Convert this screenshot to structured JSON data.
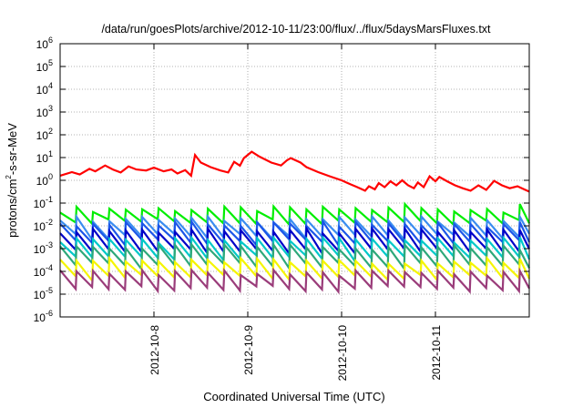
{
  "chart_data": {
    "type": "line",
    "title": "/data/run/goesPlots/archive/2012-10-11/23:00/flux/../flux/5daysMarsFluxes.txt",
    "xlabel": "Coordinated Universal Time (UTC)",
    "ylabel_parts": {
      "pre": "protons/cm",
      "sup": "2",
      "post": "-s-sr-MeV"
    },
    "x_scale": "time",
    "x_range_days": [
      "2012-10-07T00:00",
      "2012-10-12T00:00"
    ],
    "x_ticks": [
      "2012-10-8",
      "2012-10-9",
      "2012-10-10",
      "2012-10-11"
    ],
    "y_scale": "log",
    "ylim": [
      1e-06,
      1000000.0
    ],
    "y_ticks": [
      {
        "base": "10",
        "exp": "-6"
      },
      {
        "base": "10",
        "exp": "-5"
      },
      {
        "base": "10",
        "exp": "-4"
      },
      {
        "base": "10",
        "exp": "-3"
      },
      {
        "base": "10",
        "exp": "-2"
      },
      {
        "base": "10",
        "exp": "-1"
      },
      {
        "base": "10",
        "exp": "0"
      },
      {
        "base": "10",
        "exp": "1"
      },
      {
        "base": "10",
        "exp": "2"
      },
      {
        "base": "10",
        "exp": "3"
      },
      {
        "base": "10",
        "exp": "4"
      },
      {
        "base": "10",
        "exp": "5"
      },
      {
        "base": "10",
        "exp": "6"
      }
    ],
    "grid": true,
    "colors": {
      "red": "#ff0000",
      "green": "#00ee00",
      "blue_light": "#3a8cf0",
      "blue_mid": "#1c56e8",
      "blue_dark": "#0000c8",
      "cyan": "#00c8c8",
      "teal": "#2ea87a",
      "yellow": "#f5f500",
      "magenta": "#9a3c7a"
    },
    "series": [
      {
        "color_key": "red",
        "points": [
          [
            "2012-10-07T00:00",
            1.6
          ],
          [
            "2012-10-07T03:00",
            2.3
          ],
          [
            "2012-10-07T05:00",
            1.8
          ],
          [
            "2012-10-07T07:30",
            3.2
          ],
          [
            "2012-10-07T09:00",
            2.5
          ],
          [
            "2012-10-07T11:30",
            4.5
          ],
          [
            "2012-10-07T13:30",
            3.0
          ],
          [
            "2012-10-07T15:30",
            2.2
          ],
          [
            "2012-10-07T17:30",
            4.1
          ],
          [
            "2012-10-07T19:30",
            3.0
          ],
          [
            "2012-10-07T22:00",
            2.7
          ],
          [
            "2012-10-08T00:00",
            3.6
          ],
          [
            "2012-10-08T02:30",
            2.5
          ],
          [
            "2012-10-08T04:30",
            3.0
          ],
          [
            "2012-10-08T06:00",
            2.0
          ],
          [
            "2012-10-08T08:00",
            2.8
          ],
          [
            "2012-10-08T09:30",
            1.6
          ],
          [
            "2012-10-08T10:30",
            13
          ],
          [
            "2012-10-08T12:00",
            6.0
          ],
          [
            "2012-10-08T14:30",
            3.8
          ],
          [
            "2012-10-08T17:00",
            2.7
          ],
          [
            "2012-10-08T19:00",
            2.2
          ],
          [
            "2012-10-08T20:30",
            6.5
          ],
          [
            "2012-10-08T22:00",
            4.4
          ],
          [
            "2012-10-08T23:00",
            9.5
          ],
          [
            "2012-10-09T01:00",
            18
          ],
          [
            "2012-10-09T03:00",
            11
          ],
          [
            "2012-10-09T06:00",
            6.0
          ],
          [
            "2012-10-09T08:30",
            4.5
          ],
          [
            "2012-10-09T10:00",
            7.5
          ],
          [
            "2012-10-09T11:00",
            9.5
          ],
          [
            "2012-10-09T13:30",
            6.0
          ],
          [
            "2012-10-09T15:00",
            3.8
          ],
          [
            "2012-10-09T18:00",
            2.3
          ],
          [
            "2012-10-09T21:00",
            1.5
          ],
          [
            "2012-10-10T00:00",
            1.0
          ],
          [
            "2012-10-10T02:00",
            0.7
          ],
          [
            "2012-10-10T04:00",
            0.5
          ],
          [
            "2012-10-10T06:00",
            0.35
          ],
          [
            "2012-10-10T07:00",
            0.55
          ],
          [
            "2012-10-10T08:30",
            0.4
          ],
          [
            "2012-10-10T09:30",
            0.75
          ],
          [
            "2012-10-10T11:00",
            0.5
          ],
          [
            "2012-10-10T12:30",
            0.9
          ],
          [
            "2012-10-10T14:00",
            0.6
          ],
          [
            "2012-10-10T15:30",
            1.0
          ],
          [
            "2012-10-10T17:00",
            0.6
          ],
          [
            "2012-10-10T18:30",
            0.45
          ],
          [
            "2012-10-10T19:30",
            0.8
          ],
          [
            "2012-10-10T21:00",
            0.5
          ],
          [
            "2012-10-10T22:30",
            1.5
          ],
          [
            "2012-10-11T00:00",
            0.9
          ],
          [
            "2012-10-11T01:00",
            1.4
          ],
          [
            "2012-10-11T03:00",
            0.9
          ],
          [
            "2012-10-11T05:00",
            0.6
          ],
          [
            "2012-10-11T07:00",
            0.45
          ],
          [
            "2012-10-11T09:00",
            0.35
          ],
          [
            "2012-10-11T11:00",
            0.6
          ],
          [
            "2012-10-11T13:00",
            0.38
          ],
          [
            "2012-10-11T15:00",
            0.95
          ],
          [
            "2012-10-11T17:00",
            0.6
          ],
          [
            "2012-10-11T19:00",
            0.45
          ],
          [
            "2012-10-11T21:00",
            0.55
          ],
          [
            "2012-10-11T23:00",
            0.38
          ],
          [
            "2012-10-12T00:00",
            0.32
          ]
        ]
      }
    ],
    "periodic_series": [
      {
        "color_key": "green",
        "peak": 0.055,
        "trough": 0.016,
        "peak_max": 0.09,
        "trough_min": 0.01
      },
      {
        "color_key": "blue_light",
        "peak": 0.02,
        "trough": 0.0035
      },
      {
        "color_key": "blue_mid",
        "peak": 0.012,
        "trough": 0.002
      },
      {
        "color_key": "blue_dark",
        "peak": 0.006,
        "trough": 0.0008
      },
      {
        "color_key": "cyan",
        "peak": 0.0025,
        "trough": 0.0004
      },
      {
        "color_key": "teal",
        "peak": 0.0012,
        "trough": 0.00018
      },
      {
        "color_key": "yellow",
        "peak": 0.0003,
        "trough": 5.5e-05
      },
      {
        "color_key": "magenta",
        "peak": 9e-05,
        "trough": 1.8e-05
      }
    ],
    "period_hours": 4.2
  }
}
